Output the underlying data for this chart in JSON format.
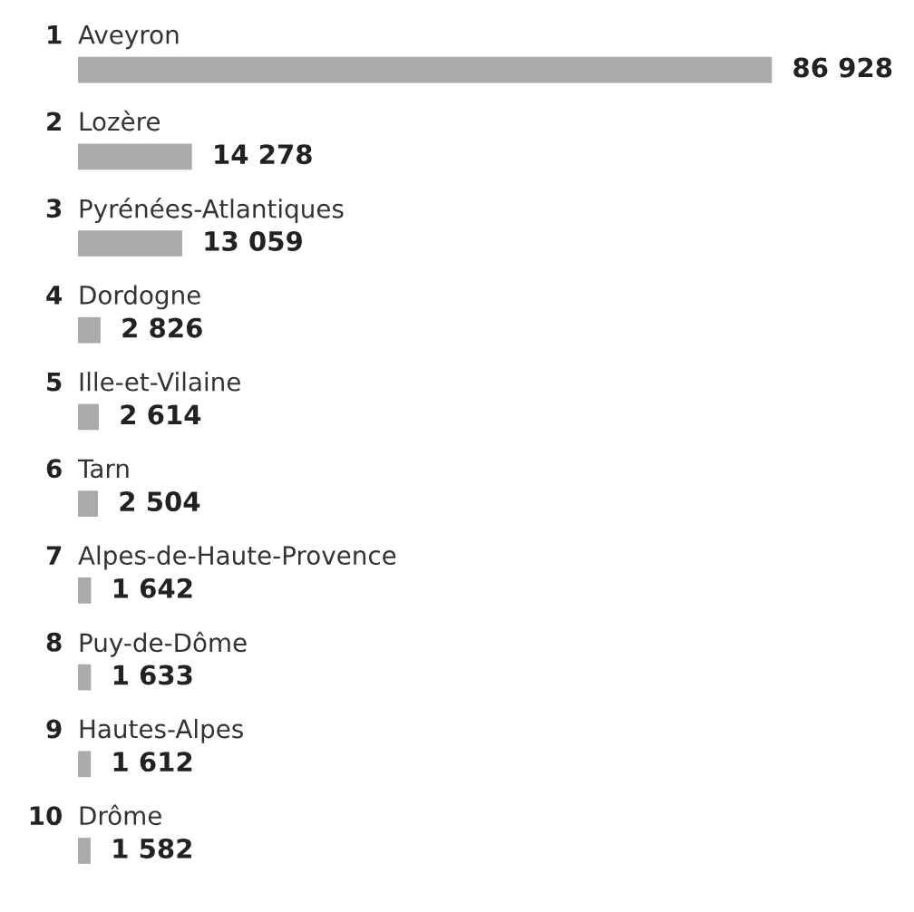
{
  "chart_data": {
    "type": "bar",
    "orientation": "horizontal",
    "categories": [
      "1 Aveyron",
      "2 Lozère",
      "3 Pyrénées-Atlantiques",
      "4 Dordogne",
      "5 Ille-et-Vilaine",
      "6 Tarn",
      "7 Alpes-de-Haute-Provence",
      "8 Puy-de-Dôme",
      "9 Hautes-Alpes",
      "10 Drôme"
    ],
    "values": [
      86928,
      14278,
      13059,
      2826,
      2614,
      2504,
      1642,
      1633,
      1612,
      1582
    ],
    "value_labels": [
      "86 928",
      "14 278",
      "13 059",
      "2 826",
      "2 614",
      "2 504",
      "1 642",
      "1 633",
      "1 612",
      "1 582"
    ],
    "color": "#aaaaaa"
  }
}
